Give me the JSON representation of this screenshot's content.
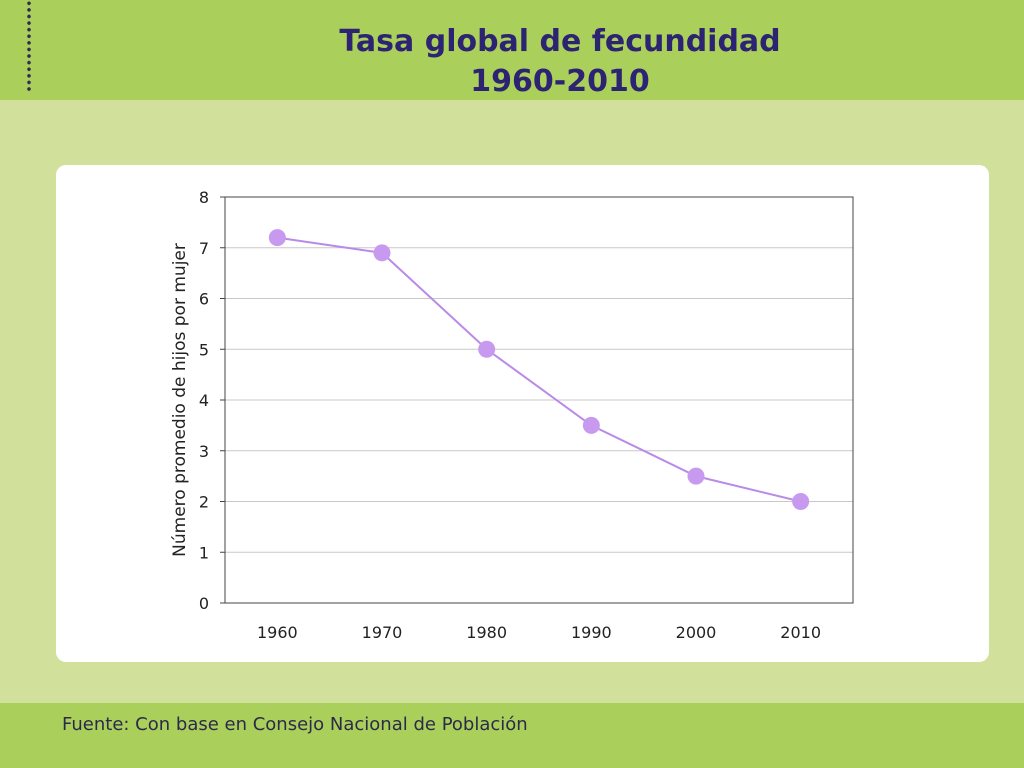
{
  "title_line1": "Tasa global de fecundidad",
  "title_line2": "1960-2010",
  "source": "Fuente: Con base en Consejo Nacional de Población",
  "colors": {
    "accent_band": "#abcf5b",
    "background": "#d1e19c",
    "title": "#2c2472",
    "series": "#c79af0",
    "series_line": "#b98ae8"
  },
  "chart_data": {
    "type": "line",
    "x": [
      "1960",
      "1970",
      "1980",
      "1990",
      "2000",
      "2010"
    ],
    "series": [
      {
        "values": [
          7.2,
          6.9,
          5.0,
          3.5,
          2.5,
          2.0
        ]
      }
    ],
    "ylabel": "Número promedio  de hijos por mujer",
    "xlabel": "",
    "ylim": [
      0,
      8
    ],
    "yticks": [
      "0",
      "1",
      "2",
      "3",
      "4",
      "5",
      "6",
      "7",
      "8"
    ],
    "grid": true,
    "legend": "none"
  }
}
